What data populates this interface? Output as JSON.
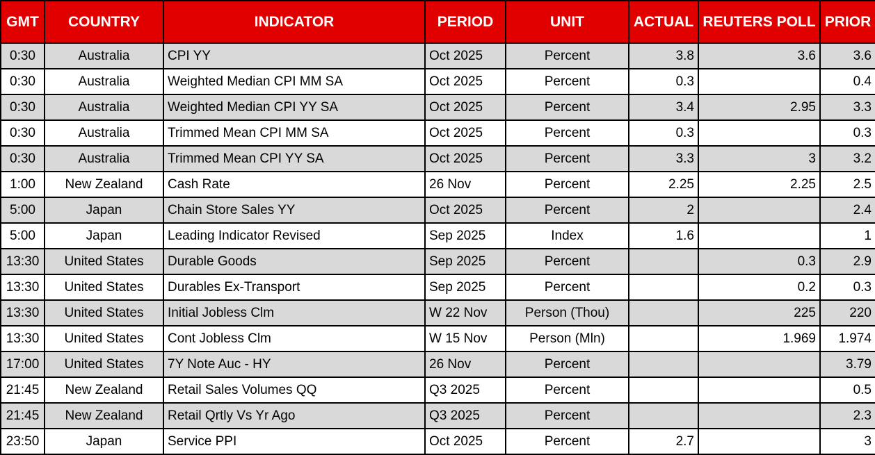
{
  "colors": {
    "header_bg": "#e10000",
    "header_text": "#ffffff",
    "row_alt_bg": "#d9d9d9",
    "row_bg": "#ffffff",
    "border_color": "#000000",
    "text_color": "#000000"
  },
  "table": {
    "columns": [
      {
        "key": "gmt",
        "label": "GMT"
      },
      {
        "key": "country",
        "label": "COUNTRY"
      },
      {
        "key": "indicator",
        "label": "INDICATOR"
      },
      {
        "key": "period",
        "label": "PERIOD"
      },
      {
        "key": "unit",
        "label": "UNIT"
      },
      {
        "key": "actual",
        "label": "ACTUAL"
      },
      {
        "key": "reuters_poll",
        "label": "REUTERS POLL"
      },
      {
        "key": "prior",
        "label": "PRIOR"
      }
    ],
    "rows": [
      {
        "gmt": "0:30",
        "country": "Australia",
        "indicator": "CPI YY",
        "period": "Oct 2025",
        "unit": "Percent",
        "actual": "3.8",
        "reuters_poll": "3.6",
        "prior": "3.6"
      },
      {
        "gmt": "0:30",
        "country": "Australia",
        "indicator": "Weighted Median CPI MM SA",
        "period": "Oct 2025",
        "unit": "Percent",
        "actual": "0.3",
        "reuters_poll": "",
        "prior": "0.4"
      },
      {
        "gmt": "0:30",
        "country": "Australia",
        "indicator": "Weighted Median CPI YY SA",
        "period": "Oct 2025",
        "unit": "Percent",
        "actual": "3.4",
        "reuters_poll": "2.95",
        "prior": "3.3"
      },
      {
        "gmt": "0:30",
        "country": "Australia",
        "indicator": "Trimmed Mean CPI MM SA",
        "period": "Oct 2025",
        "unit": "Percent",
        "actual": "0.3",
        "reuters_poll": "",
        "prior": "0.3"
      },
      {
        "gmt": "0:30",
        "country": "Australia",
        "indicator": "Trimmed Mean CPI YY SA",
        "period": "Oct 2025",
        "unit": "Percent",
        "actual": "3.3",
        "reuters_poll": "3",
        "prior": "3.2"
      },
      {
        "gmt": "1:00",
        "country": "New Zealand",
        "indicator": "Cash Rate",
        "period": "26 Nov",
        "unit": "Percent",
        "actual": "2.25",
        "reuters_poll": "2.25",
        "prior": "2.5"
      },
      {
        "gmt": "5:00",
        "country": "Japan",
        "indicator": "Chain Store Sales YY",
        "period": "Oct 2025",
        "unit": "Percent",
        "actual": "2",
        "reuters_poll": "",
        "prior": "2.4"
      },
      {
        "gmt": "5:00",
        "country": "Japan",
        "indicator": "Leading Indicator Revised",
        "period": "Sep 2025",
        "unit": "Index",
        "actual": "1.6",
        "reuters_poll": "",
        "prior": "1"
      },
      {
        "gmt": "13:30",
        "country": "United States",
        "indicator": "Durable Goods",
        "period": "Sep 2025",
        "unit": "Percent",
        "actual": "",
        "reuters_poll": "0.3",
        "prior": "2.9"
      },
      {
        "gmt": "13:30",
        "country": "United States",
        "indicator": "Durables Ex-Transport",
        "period": "Sep 2025",
        "unit": "Percent",
        "actual": "",
        "reuters_poll": "0.2",
        "prior": "0.3"
      },
      {
        "gmt": "13:30",
        "country": "United States",
        "indicator": "Initial Jobless Clm",
        "period": "W 22 Nov",
        "unit": "Person (Thou)",
        "actual": "",
        "reuters_poll": "225",
        "prior": "220"
      },
      {
        "gmt": "13:30",
        "country": "United States",
        "indicator": "Cont Jobless Clm",
        "period": "W 15 Nov",
        "unit": "Person (Mln)",
        "actual": "",
        "reuters_poll": "1.969",
        "prior": "1.974"
      },
      {
        "gmt": "17:00",
        "country": "United States",
        "indicator": "7Y Note Auc - HY",
        "period": "26 Nov",
        "unit": "Percent",
        "actual": "",
        "reuters_poll": "",
        "prior": "3.79"
      },
      {
        "gmt": "21:45",
        "country": "New Zealand",
        "indicator": "Retail Sales Volumes QQ",
        "period": "Q3 2025",
        "unit": "Percent",
        "actual": "",
        "reuters_poll": "",
        "prior": "0.5"
      },
      {
        "gmt": "21:45",
        "country": "New Zealand",
        "indicator": "Retail Qrtly Vs Yr Ago",
        "period": "Q3 2025",
        "unit": "Percent",
        "actual": "",
        "reuters_poll": "",
        "prior": "2.3"
      },
      {
        "gmt": "23:50",
        "country": "Japan",
        "indicator": "Service PPI",
        "period": "Oct 2025",
        "unit": "Percent",
        "actual": "2.7",
        "reuters_poll": "",
        "prior": "3"
      }
    ]
  }
}
